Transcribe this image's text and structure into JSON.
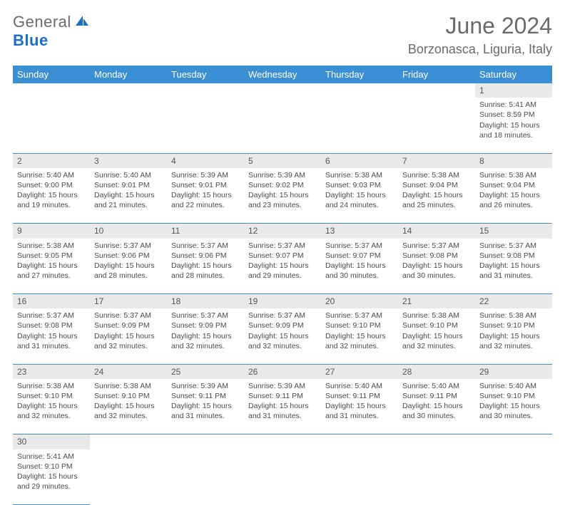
{
  "logo": {
    "text1": "General",
    "text2": "Blue"
  },
  "title": "June 2024",
  "location": "Borzonasca, Liguria, Italy",
  "headers": [
    "Sunday",
    "Monday",
    "Tuesday",
    "Wednesday",
    "Thursday",
    "Friday",
    "Saturday"
  ],
  "colors": {
    "header_bg": "#3b8fd4",
    "header_text": "#ffffff",
    "daynum_bg": "#e9e9e9",
    "text": "#4a4a4a",
    "title_text": "#6a6a6a",
    "logo_blue": "#1a6fc7",
    "border": "#3b8fd4"
  },
  "weeks": [
    [
      null,
      null,
      null,
      null,
      null,
      null,
      {
        "n": "1",
        "sr": "Sunrise: 5:41 AM",
        "ss": "Sunset: 8:59 PM",
        "d1": "Daylight: 15 hours",
        "d2": "and 18 minutes."
      }
    ],
    [
      {
        "n": "2",
        "sr": "Sunrise: 5:40 AM",
        "ss": "Sunset: 9:00 PM",
        "d1": "Daylight: 15 hours",
        "d2": "and 19 minutes."
      },
      {
        "n": "3",
        "sr": "Sunrise: 5:40 AM",
        "ss": "Sunset: 9:01 PM",
        "d1": "Daylight: 15 hours",
        "d2": "and 21 minutes."
      },
      {
        "n": "4",
        "sr": "Sunrise: 5:39 AM",
        "ss": "Sunset: 9:01 PM",
        "d1": "Daylight: 15 hours",
        "d2": "and 22 minutes."
      },
      {
        "n": "5",
        "sr": "Sunrise: 5:39 AM",
        "ss": "Sunset: 9:02 PM",
        "d1": "Daylight: 15 hours",
        "d2": "and 23 minutes."
      },
      {
        "n": "6",
        "sr": "Sunrise: 5:38 AM",
        "ss": "Sunset: 9:03 PM",
        "d1": "Daylight: 15 hours",
        "d2": "and 24 minutes."
      },
      {
        "n": "7",
        "sr": "Sunrise: 5:38 AM",
        "ss": "Sunset: 9:04 PM",
        "d1": "Daylight: 15 hours",
        "d2": "and 25 minutes."
      },
      {
        "n": "8",
        "sr": "Sunrise: 5:38 AM",
        "ss": "Sunset: 9:04 PM",
        "d1": "Daylight: 15 hours",
        "d2": "and 26 minutes."
      }
    ],
    [
      {
        "n": "9",
        "sr": "Sunrise: 5:38 AM",
        "ss": "Sunset: 9:05 PM",
        "d1": "Daylight: 15 hours",
        "d2": "and 27 minutes."
      },
      {
        "n": "10",
        "sr": "Sunrise: 5:37 AM",
        "ss": "Sunset: 9:06 PM",
        "d1": "Daylight: 15 hours",
        "d2": "and 28 minutes."
      },
      {
        "n": "11",
        "sr": "Sunrise: 5:37 AM",
        "ss": "Sunset: 9:06 PM",
        "d1": "Daylight: 15 hours",
        "d2": "and 28 minutes."
      },
      {
        "n": "12",
        "sr": "Sunrise: 5:37 AM",
        "ss": "Sunset: 9:07 PM",
        "d1": "Daylight: 15 hours",
        "d2": "and 29 minutes."
      },
      {
        "n": "13",
        "sr": "Sunrise: 5:37 AM",
        "ss": "Sunset: 9:07 PM",
        "d1": "Daylight: 15 hours",
        "d2": "and 30 minutes."
      },
      {
        "n": "14",
        "sr": "Sunrise: 5:37 AM",
        "ss": "Sunset: 9:08 PM",
        "d1": "Daylight: 15 hours",
        "d2": "and 30 minutes."
      },
      {
        "n": "15",
        "sr": "Sunrise: 5:37 AM",
        "ss": "Sunset: 9:08 PM",
        "d1": "Daylight: 15 hours",
        "d2": "and 31 minutes."
      }
    ],
    [
      {
        "n": "16",
        "sr": "Sunrise: 5:37 AM",
        "ss": "Sunset: 9:08 PM",
        "d1": "Daylight: 15 hours",
        "d2": "and 31 minutes."
      },
      {
        "n": "17",
        "sr": "Sunrise: 5:37 AM",
        "ss": "Sunset: 9:09 PM",
        "d1": "Daylight: 15 hours",
        "d2": "and 32 minutes."
      },
      {
        "n": "18",
        "sr": "Sunrise: 5:37 AM",
        "ss": "Sunset: 9:09 PM",
        "d1": "Daylight: 15 hours",
        "d2": "and 32 minutes."
      },
      {
        "n": "19",
        "sr": "Sunrise: 5:37 AM",
        "ss": "Sunset: 9:09 PM",
        "d1": "Daylight: 15 hours",
        "d2": "and 32 minutes."
      },
      {
        "n": "20",
        "sr": "Sunrise: 5:37 AM",
        "ss": "Sunset: 9:10 PM",
        "d1": "Daylight: 15 hours",
        "d2": "and 32 minutes."
      },
      {
        "n": "21",
        "sr": "Sunrise: 5:38 AM",
        "ss": "Sunset: 9:10 PM",
        "d1": "Daylight: 15 hours",
        "d2": "and 32 minutes."
      },
      {
        "n": "22",
        "sr": "Sunrise: 5:38 AM",
        "ss": "Sunset: 9:10 PM",
        "d1": "Daylight: 15 hours",
        "d2": "and 32 minutes."
      }
    ],
    [
      {
        "n": "23",
        "sr": "Sunrise: 5:38 AM",
        "ss": "Sunset: 9:10 PM",
        "d1": "Daylight: 15 hours",
        "d2": "and 32 minutes."
      },
      {
        "n": "24",
        "sr": "Sunrise: 5:38 AM",
        "ss": "Sunset: 9:10 PM",
        "d1": "Daylight: 15 hours",
        "d2": "and 32 minutes."
      },
      {
        "n": "25",
        "sr": "Sunrise: 5:39 AM",
        "ss": "Sunset: 9:11 PM",
        "d1": "Daylight: 15 hours",
        "d2": "and 31 minutes."
      },
      {
        "n": "26",
        "sr": "Sunrise: 5:39 AM",
        "ss": "Sunset: 9:11 PM",
        "d1": "Daylight: 15 hours",
        "d2": "and 31 minutes."
      },
      {
        "n": "27",
        "sr": "Sunrise: 5:40 AM",
        "ss": "Sunset: 9:11 PM",
        "d1": "Daylight: 15 hours",
        "d2": "and 31 minutes."
      },
      {
        "n": "28",
        "sr": "Sunrise: 5:40 AM",
        "ss": "Sunset: 9:11 PM",
        "d1": "Daylight: 15 hours",
        "d2": "and 30 minutes."
      },
      {
        "n": "29",
        "sr": "Sunrise: 5:40 AM",
        "ss": "Sunset: 9:10 PM",
        "d1": "Daylight: 15 hours",
        "d2": "and 30 minutes."
      }
    ],
    [
      {
        "n": "30",
        "sr": "Sunrise: 5:41 AM",
        "ss": "Sunset: 9:10 PM",
        "d1": "Daylight: 15 hours",
        "d2": "and 29 minutes."
      },
      null,
      null,
      null,
      null,
      null,
      null
    ]
  ]
}
